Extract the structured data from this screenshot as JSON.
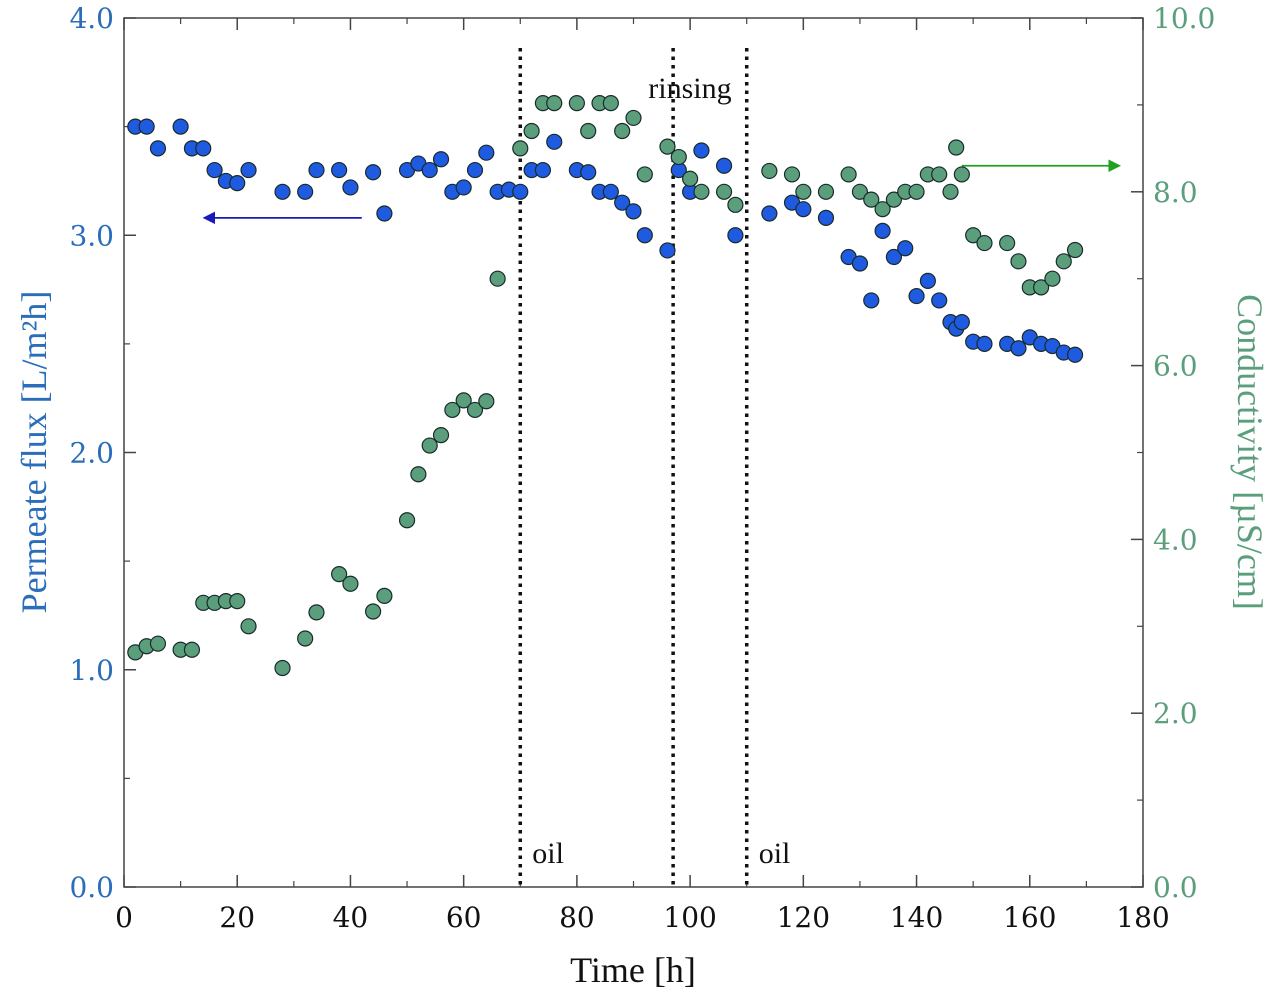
{
  "chart_data": {
    "type": "scatter",
    "title": "",
    "xlabel": "Time [h]",
    "ylabel_left": "Permeate flux [L/m²h]",
    "ylabel_right": "Conductivity [µS/cm]",
    "xlim": [
      0,
      180
    ],
    "ylim_left": [
      0.0,
      4.0
    ],
    "ylim_right": [
      0.0,
      10.0
    ],
    "x_ticks": [
      "0",
      "20",
      "40",
      "60",
      "80",
      "100",
      "120",
      "140",
      "160",
      "180"
    ],
    "y_left_ticks": [
      "0.0",
      "1.0",
      "2.0",
      "3.0",
      "4.0"
    ],
    "y_right_ticks": [
      "0.0",
      "2.0",
      "4.0",
      "6.0",
      "8.0",
      "10.0"
    ],
    "grid": false,
    "colors": {
      "flux": "#1f5be0",
      "conductivity": "#5a9e7c",
      "left_axis": "#2a6ebb",
      "right_axis": "#5a9e7c",
      "arrow_left": "#1a1ab8",
      "arrow_right": "#22a022",
      "vline": "#111111"
    },
    "series": [
      {
        "name": "Permeate flux",
        "axis": "left",
        "points": [
          [
            2,
            3.5
          ],
          [
            4,
            3.5
          ],
          [
            6,
            3.4
          ],
          [
            10,
            3.5
          ],
          [
            12,
            3.4
          ],
          [
            14,
            3.4
          ],
          [
            16,
            3.3
          ],
          [
            18,
            3.25
          ],
          [
            20,
            3.24
          ],
          [
            22,
            3.3
          ],
          [
            28,
            3.2
          ],
          [
            32,
            3.2
          ],
          [
            34,
            3.3
          ],
          [
            38,
            3.3
          ],
          [
            40,
            3.22
          ],
          [
            44,
            3.29
          ],
          [
            46,
            3.1
          ],
          [
            50,
            3.3
          ],
          [
            52,
            3.33
          ],
          [
            54,
            3.3
          ],
          [
            56,
            3.35
          ],
          [
            58,
            3.2
          ],
          [
            60,
            3.22
          ],
          [
            62,
            3.3
          ],
          [
            64,
            3.38
          ],
          [
            66,
            3.2
          ],
          [
            68,
            3.21
          ],
          [
            70,
            3.2
          ],
          [
            72,
            3.3
          ],
          [
            74,
            3.3
          ],
          [
            76,
            3.43
          ],
          [
            80,
            3.3
          ],
          [
            82,
            3.29
          ],
          [
            84,
            3.2
          ],
          [
            86,
            3.2
          ],
          [
            88,
            3.15
          ],
          [
            90,
            3.11
          ],
          [
            92,
            3.0
          ],
          [
            96,
            2.93
          ],
          [
            98,
            3.3
          ],
          [
            100,
            3.2
          ],
          [
            102,
            3.39
          ],
          [
            106,
            3.32
          ],
          [
            108,
            3.0
          ],
          [
            114,
            3.1
          ],
          [
            118,
            3.15
          ],
          [
            120,
            3.12
          ],
          [
            124,
            3.08
          ],
          [
            128,
            2.9
          ],
          [
            130,
            2.87
          ],
          [
            132,
            2.7
          ],
          [
            134,
            3.02
          ],
          [
            136,
            2.9
          ],
          [
            138,
            2.94
          ],
          [
            140,
            2.72
          ],
          [
            142,
            2.79
          ],
          [
            144,
            2.7
          ],
          [
            146,
            2.6
          ],
          [
            147,
            2.57
          ],
          [
            148,
            2.6
          ],
          [
            150,
            2.51
          ],
          [
            152,
            2.5
          ],
          [
            156,
            2.5
          ],
          [
            158,
            2.48
          ],
          [
            160,
            2.53
          ],
          [
            162,
            2.5
          ],
          [
            164,
            2.49
          ],
          [
            166,
            2.46
          ],
          [
            168,
            2.45
          ]
        ]
      },
      {
        "name": "Conductivity",
        "axis": "right",
        "points": [
          [
            2,
            2.7
          ],
          [
            4,
            2.77
          ],
          [
            6,
            2.8
          ],
          [
            10,
            2.73
          ],
          [
            12,
            2.73
          ],
          [
            14,
            3.27
          ],
          [
            16,
            3.27
          ],
          [
            18,
            3.29
          ],
          [
            20,
            3.29
          ],
          [
            22,
            3.0
          ],
          [
            28,
            2.52
          ],
          [
            32,
            2.86
          ],
          [
            34,
            3.16
          ],
          [
            38,
            3.6
          ],
          [
            40,
            3.49
          ],
          [
            44,
            3.17
          ],
          [
            46,
            3.35
          ],
          [
            50,
            4.22
          ],
          [
            52,
            4.75
          ],
          [
            54,
            5.08
          ],
          [
            56,
            5.2
          ],
          [
            58,
            5.49
          ],
          [
            60,
            5.6
          ],
          [
            62,
            5.49
          ],
          [
            64,
            5.59
          ],
          [
            66,
            7.0
          ],
          [
            70,
            8.5
          ],
          [
            72,
            8.7
          ],
          [
            74,
            9.02
          ],
          [
            76,
            9.02
          ],
          [
            80,
            9.02
          ],
          [
            82,
            8.7
          ],
          [
            84,
            9.02
          ],
          [
            86,
            9.02
          ],
          [
            88,
            8.7
          ],
          [
            90,
            8.85
          ],
          [
            92,
            8.2
          ],
          [
            96,
            8.52
          ],
          [
            98,
            8.4
          ],
          [
            100,
            8.15
          ],
          [
            102,
            8.0
          ],
          [
            106,
            8.0
          ],
          [
            108,
            7.85
          ],
          [
            114,
            8.24
          ],
          [
            118,
            8.2
          ],
          [
            120,
            8.0
          ],
          [
            124,
            8.0
          ],
          [
            128,
            8.2
          ],
          [
            130,
            8.0
          ],
          [
            132,
            7.91
          ],
          [
            134,
            7.8
          ],
          [
            136,
            7.91
          ],
          [
            138,
            8.0
          ],
          [
            140,
            8.0
          ],
          [
            142,
            8.2
          ],
          [
            144,
            8.2
          ],
          [
            146,
            8.0
          ],
          [
            147,
            8.51
          ],
          [
            148,
            8.2
          ],
          [
            150,
            7.5
          ],
          [
            152,
            7.41
          ],
          [
            156,
            7.41
          ],
          [
            158,
            7.2
          ],
          [
            160,
            6.9
          ],
          [
            162,
            6.9
          ],
          [
            164,
            7.0
          ],
          [
            166,
            7.2
          ],
          [
            168,
            7.33
          ]
        ]
      }
    ],
    "vlines": [
      {
        "x": 70,
        "label": "oil",
        "label_position": "bottom-right"
      },
      {
        "x": 97,
        "label": "",
        "label_position": ""
      },
      {
        "x": 110,
        "label": "oil",
        "label_position": "bottom-right"
      }
    ],
    "annotations": [
      {
        "text": "rinsing",
        "between": [
          97,
          110
        ],
        "position": "top"
      }
    ],
    "arrows": [
      {
        "direction": "left",
        "points_to": "left axis",
        "from_x": 42,
        "to_x": 15,
        "y_left": 3.08,
        "color": "arrow_left"
      },
      {
        "direction": "right",
        "points_to": "right axis",
        "from_x": 148,
        "to_x": 175,
        "y_right": 8.3,
        "color": "arrow_right"
      }
    ]
  }
}
